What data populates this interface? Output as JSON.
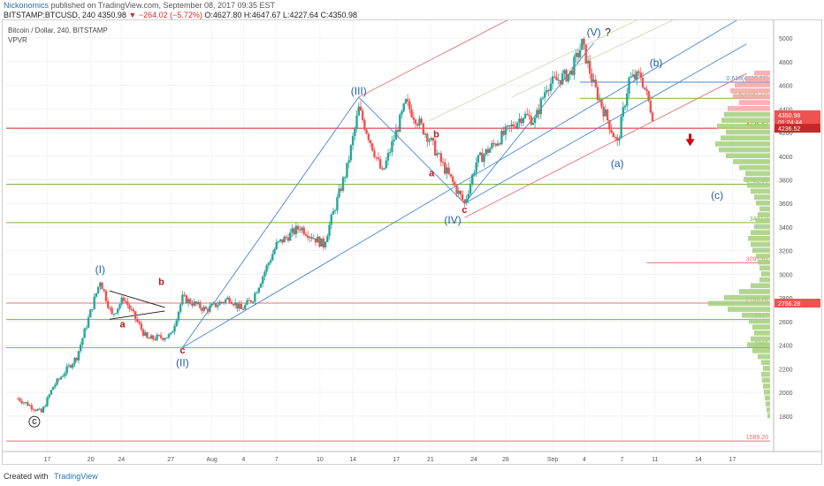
{
  "header": {
    "author": "Nickonomics",
    "published": "published on TradingView.com, September 08, 2017 09:35 EST",
    "symbol_line": "BITSTAMP:BTCUSD, 240  4350.98",
    "change": "▼ −264.02 (−5.72%)",
    "ohlc": "O:4627.80 H:4647.67 L:4227.64 C:4350.98"
  },
  "chart_header": {
    "title": "Bitcoin / Dollar, 240, BITSTAMP",
    "indicator": "VPVR"
  },
  "footer": {
    "created_with": "Created with",
    "brand": "TradingView"
  },
  "colors": {
    "up": "#26a69a",
    "down": "#ef5350",
    "wave_blue": "#1f5fa8",
    "wave_red": "#b71c1c",
    "line_blue": "#4a86d8",
    "line_green": "#7cb342",
    "line_red": "#e57373"
  },
  "chart_data": {
    "type": "line",
    "title": "Bitcoin / Dollar, 240, BITSTAMP",
    "ylim": [
      1500,
      5150
    ],
    "y_ticks": [
      1800,
      2000,
      2200,
      2400,
      2600,
      2800,
      3000,
      3200,
      3400,
      3600,
      3800,
      4000,
      4200,
      4400,
      4600,
      4800,
      5000
    ],
    "x_ticks": [
      "17",
      "20",
      "24",
      "27",
      "Aug",
      "4",
      "7",
      "10",
      "14",
      "17",
      "21",
      "24",
      "28",
      "Sep",
      "4",
      "7",
      "11",
      "14",
      "17"
    ],
    "price_path": {
      "x_days": [
        0,
        2,
        3,
        5,
        7,
        8,
        9,
        11,
        13,
        14,
        16,
        18,
        19,
        20,
        22,
        24,
        26,
        28,
        29,
        31,
        33,
        35,
        36,
        38,
        39,
        41,
        43,
        44,
        45,
        47,
        48,
        49,
        50,
        51,
        52,
        53,
        54,
        55,
        56,
        57,
        58,
        59,
        61
      ],
      "close": [
        1950,
        1830,
        2050,
        2300,
        2950,
        2650,
        2800,
        2450,
        2480,
        2800,
        2700,
        2800,
        2700,
        2800,
        3250,
        3400,
        3250,
        3900,
        4400,
        3850,
        4450,
        4150,
        3950,
        3600,
        3950,
        4150,
        4350,
        4300,
        4600,
        4700,
        4950,
        4600,
        4350,
        4100,
        4650,
        4680,
        4350,
        null,
        null,
        null,
        null,
        null,
        null
      ]
    },
    "horizontal_levels": [
      {
        "label": "0.618(4626.22)",
        "value": 4626.22
      },
      {
        "label": "0.5(4490.22)",
        "value": 4490.22
      },
      {
        "label": "4236.52",
        "value": 4236.52
      },
      {
        "label": "3762.80",
        "value": 3762.8
      },
      {
        "label": "3437.9",
        "value": 3437.9
      },
      {
        "label": "3097.61",
        "value": 3097.61
      },
      {
        "label": "2756.28",
        "value": 2756.28
      },
      {
        "label": "2617",
        "value": 2617
      },
      {
        "label": "2380",
        "value": 2380
      },
      {
        "label": "1589.20",
        "value": 1589.2
      }
    ],
    "price_badges": [
      {
        "label": "4350.98",
        "value": 4350.98
      },
      {
        "label": "01:24:44",
        "value": 4290
      },
      {
        "label": "4236.52",
        "value": 4236.52
      },
      {
        "label": "2756.28",
        "value": 2756.28
      }
    ],
    "wave_labels": [
      {
        "text": "(I)",
        "x_day": 7,
        "y": 3010,
        "color": "blue"
      },
      {
        "text": "(II)",
        "x_day": 14,
        "y": 2220,
        "color": "blue"
      },
      {
        "text": "(III)",
        "x_day": 29,
        "y": 4520,
        "color": "blue"
      },
      {
        "text": "(IV)",
        "x_day": 37,
        "y": 3430,
        "color": "blue"
      },
      {
        "text": "(V)",
        "x_day": 49,
        "y": 5020,
        "color": "blue"
      },
      {
        "text": "?",
        "x_day": 50.2,
        "y": 5020,
        "color": "black"
      },
      {
        "text": "(a)",
        "x_day": 51,
        "y": 3910,
        "color": "blue"
      },
      {
        "text": "(b)",
        "x_day": 54.3,
        "y": 4760,
        "color": "blue"
      },
      {
        "text": "(c)",
        "x_day": 59.5,
        "y": 3640,
        "color": "blue"
      },
      {
        "text": "a",
        "x_day": 8.9,
        "y": 2550,
        "color": "red"
      },
      {
        "text": "b",
        "x_day": 12.2,
        "y": 2910,
        "color": "red"
      },
      {
        "text": "c",
        "x_day": 14,
        "y": 2330,
        "color": "red"
      },
      {
        "text": "a",
        "x_day": 35.2,
        "y": 3830,
        "color": "red"
      },
      {
        "text": "b",
        "x_day": 35.6,
        "y": 4160,
        "color": "red"
      },
      {
        "text": "c",
        "x_day": 38,
        "y": 3520,
        "color": "red"
      },
      {
        "text": "c",
        "x_day": 1.4,
        "y": 1730,
        "color": "black"
      }
    ],
    "vpvr_profile": {
      "prices": [
        4700,
        4650,
        4600,
        4550,
        4500,
        4450,
        4400,
        4350,
        4300,
        4250,
        4200,
        4150,
        4100,
        4050,
        4000,
        3950,
        3900,
        3850,
        3800,
        3750,
        3700,
        3650,
        3600,
        3550,
        3500,
        3450,
        3400,
        3350,
        3300,
        3250,
        3200,
        3150,
        3100,
        3050,
        3000,
        2950,
        2900,
        2850,
        2800,
        2750,
        2700,
        2650,
        2600,
        2550,
        2500,
        2450,
        2400,
        2350,
        2300,
        2250,
        2200,
        2150,
        2100,
        2050,
        2000,
        1950,
        1900,
        1850,
        1800
      ],
      "volume": [
        18,
        28,
        40,
        45,
        42,
        35,
        48,
        52,
        55,
        60,
        50,
        56,
        62,
        58,
        50,
        42,
        35,
        28,
        30,
        26,
        22,
        18,
        16,
        12,
        14,
        16,
        18,
        22,
        25,
        22,
        20,
        16,
        14,
        12,
        10,
        12,
        22,
        35,
        52,
        70,
        48,
        32,
        24,
        20,
        18,
        22,
        26,
        20,
        14,
        10,
        8,
        10,
        9,
        8,
        7,
        6,
        5,
        4,
        3
      ]
    }
  }
}
